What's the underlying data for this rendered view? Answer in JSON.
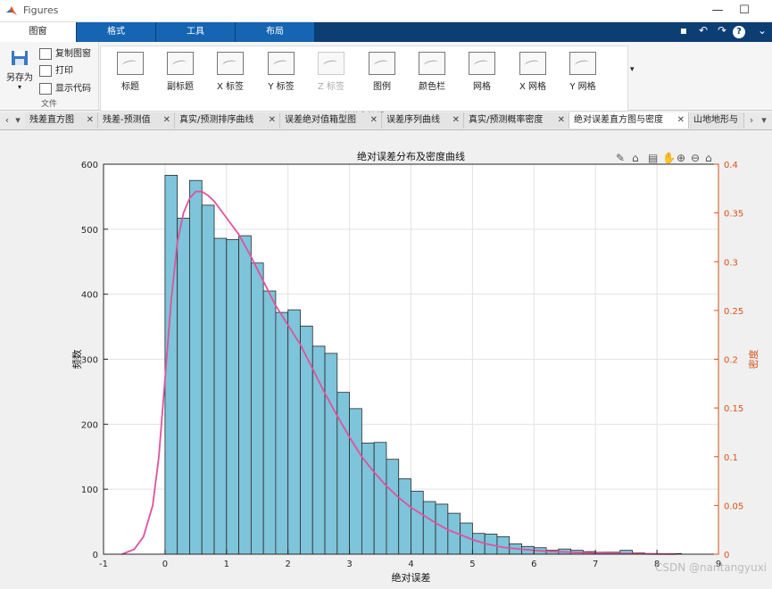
{
  "window": {
    "title": "Figures"
  },
  "ribbon": {
    "tabs": [
      {
        "label": "图窗",
        "active": true
      },
      {
        "label": "格式",
        "active": false
      },
      {
        "label": "工具",
        "active": false
      },
      {
        "label": "布局",
        "active": false
      }
    ],
    "file_group": {
      "save_as": "另存为",
      "copy_figure": "复制图窗",
      "print": "打印",
      "show_code": "显示代码",
      "label": "文件"
    },
    "annotation_group": {
      "label": "标签和注解",
      "buttons": [
        {
          "label": "标题",
          "enabled": true
        },
        {
          "label": "副标题",
          "enabled": true
        },
        {
          "label": "X 标签",
          "enabled": true
        },
        {
          "label": "Y 标签",
          "enabled": true
        },
        {
          "label": "Z 标签",
          "enabled": false
        },
        {
          "label": "图例",
          "enabled": true
        },
        {
          "label": "颜色栏",
          "enabled": true
        },
        {
          "label": "网格",
          "enabled": true
        },
        {
          "label": "X 网格",
          "enabled": true
        },
        {
          "label": "Y 网格",
          "enabled": true
        }
      ]
    }
  },
  "doc_tabs": [
    {
      "label": "残差直方图",
      "active": false
    },
    {
      "label": "残差-预测值",
      "active": false
    },
    {
      "label": "真实/预测排序曲线",
      "active": false
    },
    {
      "label": "误差绝对值箱型图",
      "active": false
    },
    {
      "label": "误差序列曲线",
      "active": false
    },
    {
      "label": "真实/预测概率密度",
      "active": false
    },
    {
      "label": "绝对误差直方图与密度",
      "active": true
    },
    {
      "label": "山地地形与",
      "active": false
    }
  ],
  "watermark": "CSDN @nantangyuxi",
  "chart_data": {
    "type": "bar",
    "title": "绝对误差分布及密度曲线",
    "xlabel": "绝对误差",
    "ylabel_left": "频数",
    "ylabel_right": "密度",
    "xlim": [
      -1,
      9
    ],
    "ylim_left": [
      0,
      600
    ],
    "ylim_right": [
      0,
      0.4
    ],
    "xticks": [
      "-1",
      "0",
      "1",
      "2",
      "3",
      "4",
      "5",
      "6",
      "7",
      "8",
      "9"
    ],
    "yticks_left": [
      "0",
      "100",
      "200",
      "300",
      "400",
      "500",
      "600"
    ],
    "yticks_right": [
      "0",
      "0.05",
      "0.1",
      "0.15",
      "0.2",
      "0.25",
      "0.3",
      "0.35",
      "0.4"
    ],
    "grid": true,
    "colors": {
      "bar": "#7ec4da",
      "bar_edge": "#2a2a2a",
      "density": "#e0529c",
      "right_axis": "#d95319"
    },
    "histogram": {
      "bin_width": 0.2,
      "bin_start": 0.0,
      "counts": [
        583,
        517,
        575,
        537,
        486,
        484,
        490,
        448,
        405,
        372,
        376,
        351,
        320,
        309,
        249,
        224,
        171,
        172,
        146,
        116,
        97,
        81,
        77,
        63,
        48,
        32,
        31,
        27,
        16,
        12,
        10,
        6,
        8,
        6,
        4,
        3,
        3,
        6,
        2,
        1,
        1,
        1,
        0
      ]
    },
    "density": {
      "x": [
        -0.7,
        -0.5,
        -0.35,
        -0.2,
        -0.1,
        0.0,
        0.1,
        0.2,
        0.3,
        0.4,
        0.5,
        0.6,
        0.7,
        0.8,
        1.0,
        1.2,
        1.4,
        1.6,
        1.8,
        2.0,
        2.2,
        2.4,
        2.6,
        2.8,
        3.0,
        3.2,
        3.4,
        3.6,
        3.8,
        4.0,
        4.2,
        4.4,
        4.6,
        4.8,
        5.0,
        5.2,
        5.5,
        5.8,
        6.2,
        6.6,
        7.0,
        7.5,
        8.0,
        8.3
      ],
      "y": [
        0.0,
        0.005,
        0.018,
        0.05,
        0.1,
        0.18,
        0.26,
        0.32,
        0.35,
        0.365,
        0.372,
        0.372,
        0.368,
        0.362,
        0.345,
        0.328,
        0.305,
        0.28,
        0.255,
        0.235,
        0.215,
        0.19,
        0.165,
        0.142,
        0.12,
        0.1,
        0.084,
        0.07,
        0.058,
        0.048,
        0.04,
        0.032,
        0.025,
        0.02,
        0.015,
        0.011,
        0.007,
        0.005,
        0.003,
        0.002,
        0.0012,
        0.0006,
        0.0002,
        0.0
      ]
    }
  }
}
